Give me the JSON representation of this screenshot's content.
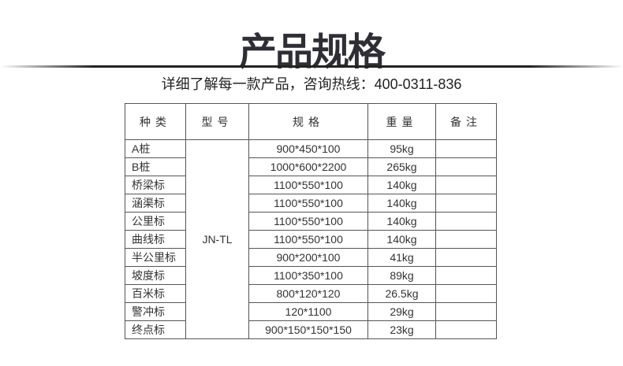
{
  "title": "产品规格",
  "subtitle": "详细了解每一款产品，咨询热线：400-0311-836",
  "headers": [
    "种类",
    "型号",
    "规格",
    "重量",
    "备注"
  ],
  "model": "JN-TL",
  "rows": [
    {
      "kind": "A桩",
      "spec": "900*450*100",
      "weight": "95kg",
      "note": ""
    },
    {
      "kind": "B桩",
      "spec": "1000*600*2200",
      "weight": "265kg",
      "note": ""
    },
    {
      "kind": "桥梁标",
      "spec": "1100*550*100",
      "weight": "140kg",
      "note": ""
    },
    {
      "kind": "涵渠标",
      "spec": "1100*550*100",
      "weight": "140kg",
      "note": ""
    },
    {
      "kind": "公里标",
      "spec": "1100*550*100",
      "weight": "140kg",
      "note": ""
    },
    {
      "kind": "曲线标",
      "spec": "1100*550*100",
      "weight": "140kg",
      "note": ""
    },
    {
      "kind": "半公里标",
      "spec": "900*200*100",
      "weight": "41kg",
      "note": ""
    },
    {
      "kind": "坡度标",
      "spec": "1100*350*100",
      "weight": "89kg",
      "note": ""
    },
    {
      "kind": "百米标",
      "spec": "800*120*120",
      "weight": "26.5kg",
      "note": ""
    },
    {
      "kind": "警冲标",
      "spec": "120*1100",
      "weight": "29kg",
      "note": ""
    },
    {
      "kind": "终点标",
      "spec": "900*150*150*150",
      "weight": "23kg",
      "note": ""
    }
  ]
}
